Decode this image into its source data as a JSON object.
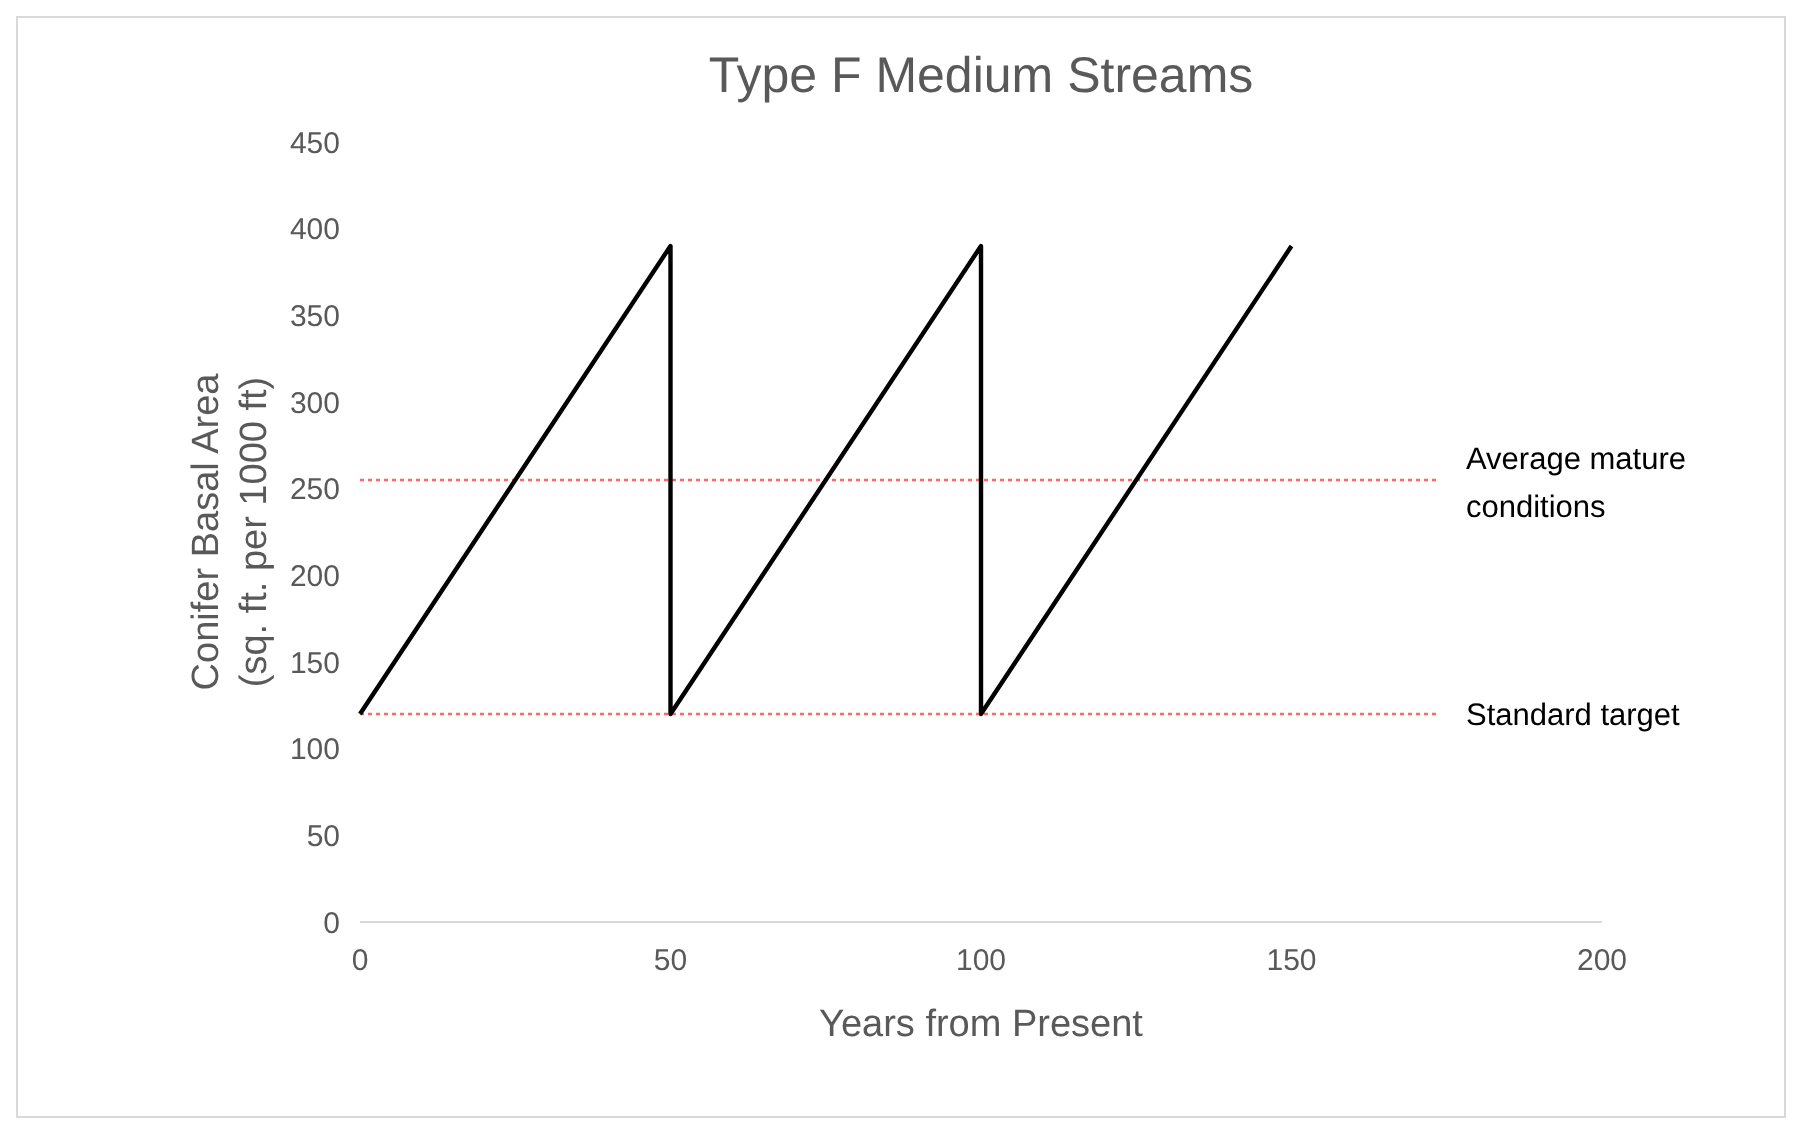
{
  "chart_data": {
    "type": "line",
    "title": "Type F Medium Streams",
    "xlabel": "Years from Present",
    "ylabel": "Conifer Basal Area\n(sq. ft. per 1000 ft)",
    "series": [
      {
        "color": "#000000",
        "x": [
          0,
          50,
          50,
          100,
          100,
          150
        ],
        "values": [
          120,
          390,
          120,
          390,
          120,
          390
        ]
      }
    ],
    "xlim": [
      0,
      200
    ],
    "xticks": [
      0,
      50,
      100,
      150,
      200
    ],
    "ylim": [
      0,
      450
    ],
    "yticks": [
      0,
      50,
      100,
      150,
      200,
      250,
      300,
      350,
      400,
      450
    ],
    "grid": false,
    "marker": "none",
    "line_style": "solid",
    "ref_lines": [
      {
        "axis": "y",
        "value": 255,
        "label": "Average mature conditions",
        "color": "#ff6666",
        "line_style": "dotted"
      },
      {
        "axis": "y",
        "value": 120,
        "label": "Standard target",
        "color": "#ff6666",
        "line_style": "dotted"
      }
    ]
  }
}
